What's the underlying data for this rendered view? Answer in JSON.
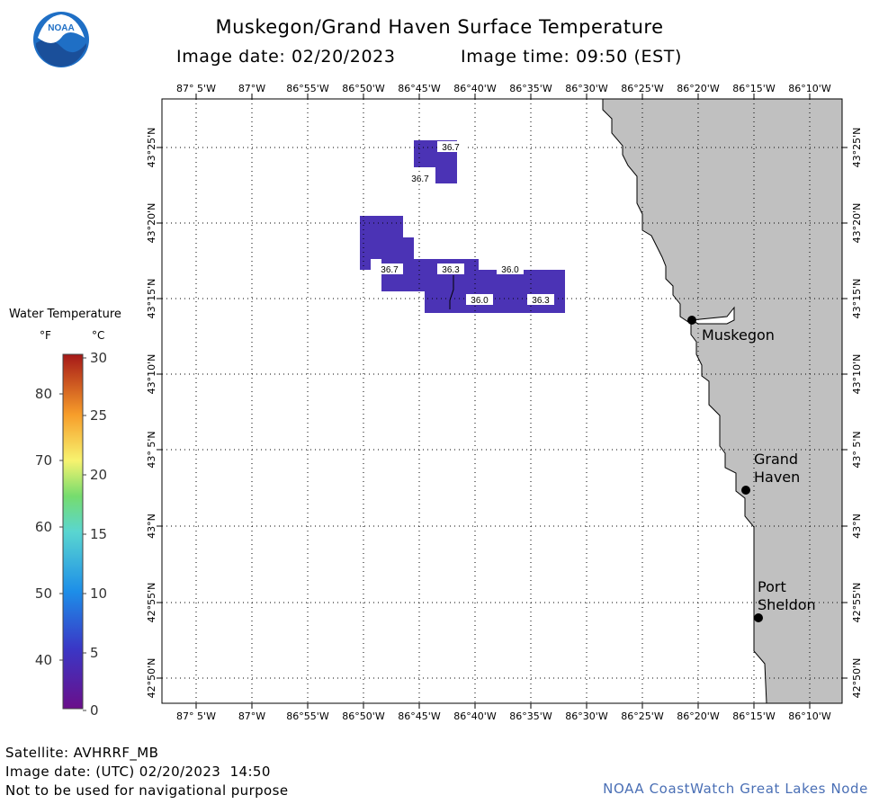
{
  "header": {
    "title": "Muskegon/Grand Haven Surface Temperature",
    "image_date": "Image date: 02/20/2023",
    "image_time": "Image time: 09:50 (EST)"
  },
  "logo_text": "NOAA",
  "map": {
    "lon_labels": [
      "87° 5'W",
      "87°W",
      "86°55'W",
      "86°50'W",
      "86°45'W",
      "86°40'W",
      "86°35'W",
      "86°30'W",
      "86°25'W",
      "86°20'W",
      "86°15'W",
      "86°10'W"
    ],
    "lat_labels": [
      "43°25'N",
      "43°20'N",
      "43°15'N",
      "43°10'N",
      "43° 5'N",
      "43°N",
      "42°55'N",
      "42°50'N"
    ],
    "land_color": "#c0c0c0",
    "water_patch_color": "#4b33b5",
    "temperature_labels": [
      "36.7",
      "36.7",
      "36.7",
      "36.3",
      "36.0",
      "36.0",
      "36.3"
    ],
    "places": [
      {
        "name_lines": [
          "Muskegon"
        ]
      },
      {
        "name_lines": [
          "Grand",
          "Haven"
        ]
      },
      {
        "name_lines": [
          "Port",
          "Sheldon"
        ]
      }
    ]
  },
  "legend": {
    "title": "Water Temperature",
    "unit_f": "°F",
    "unit_c": "°C",
    "f_ticks": [
      "80",
      "70",
      "60",
      "50",
      "40"
    ],
    "c_ticks": [
      "30",
      "25",
      "20",
      "15",
      "10",
      "5",
      "0"
    ]
  },
  "footer": {
    "satellite": "Satellite: AVHRRF_MB",
    "utc_date": "Image date: (UTC) 02/20/2023  14:50",
    "disclaimer": "Not to be used for navigational purpose",
    "node": "NOAA CoastWatch Great Lakes Node"
  }
}
